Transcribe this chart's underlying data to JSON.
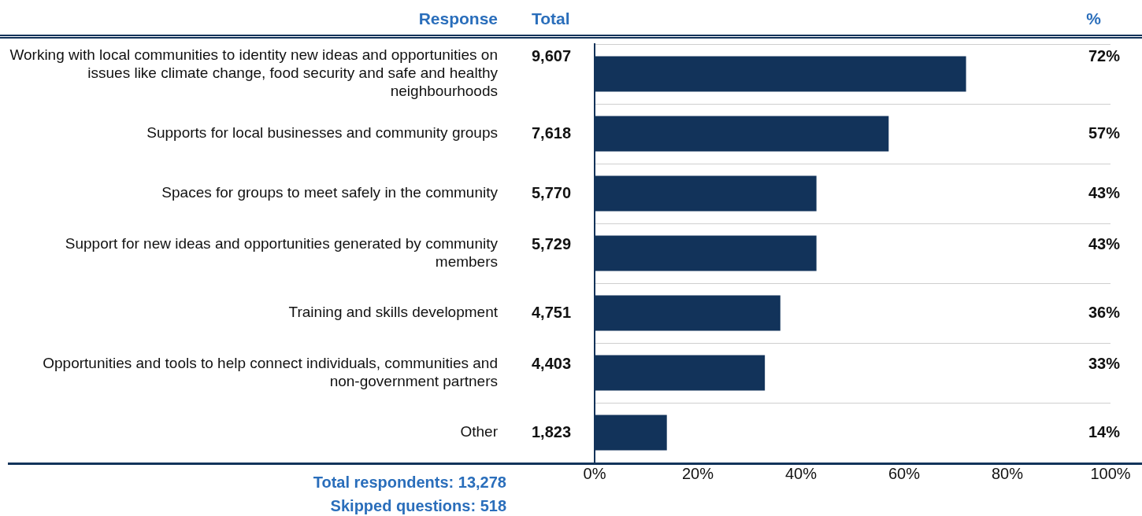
{
  "chart_data": {
    "type": "bar",
    "orientation": "horizontal",
    "categories": [
      "Working with local communities to identity new ideas and opportunities on issues like climate change, food security and safe and healthy neighbourhoods",
      "Supports for local businesses and community groups",
      "Spaces for groups to meet safely in the community",
      "Support for new ideas and opportunities generated by community members",
      "Training and skills development",
      "Opportunities and tools to help connect individuals, communities and non-government partners",
      "Other"
    ],
    "values": [
      72,
      57,
      43,
      43,
      36,
      33,
      14
    ],
    "value_labels": [
      "72%",
      "57%",
      "43%",
      "43%",
      "36%",
      "33%",
      "14%"
    ],
    "color": "#12335a",
    "xlim": [
      0,
      100
    ],
    "xticks": [
      {
        "value": 0,
        "label": "0%"
      },
      {
        "value": 20,
        "label": "20%"
      },
      {
        "value": 40,
        "label": "40%"
      },
      {
        "value": 60,
        "label": "60%"
      },
      {
        "value": 80,
        "label": "80%"
      },
      {
        "value": 100,
        "label": "100%"
      }
    ],
    "grid": "y",
    "legend": false,
    "annotations": [
      "Response",
      "Total",
      "%",
      "9,607",
      "7,618",
      "5,770",
      "5,729",
      "4,751",
      "4,403",
      "1,823",
      "Total respondents: 13,278",
      "Skipped questions: 518"
    ]
  }
}
